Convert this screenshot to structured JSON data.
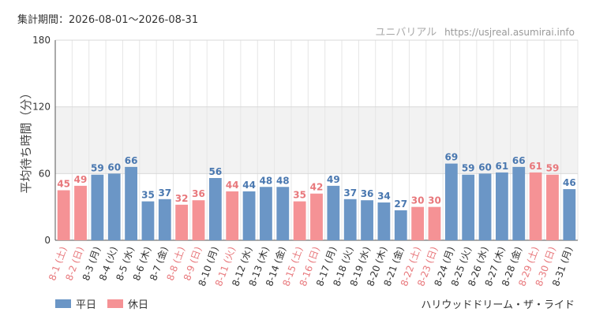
{
  "header": {
    "period": "集計期間：2026-08-01〜2026-08-31",
    "source_name": "ユニバリアル",
    "source_url": "https://usjreal.asumirai.info"
  },
  "footer": {
    "attraction": "ハリウッドドリーム・ザ・ライド"
  },
  "colors": {
    "weekday": "#6b96c6",
    "holiday": "#f59295",
    "weekday_label": "#4a78b0",
    "holiday_label": "#e8787c",
    "holiday_tick": "#e8787c",
    "band": "#f2f2f2"
  },
  "chart_data": {
    "type": "bar",
    "ylabel": "平均待ち時間（分）",
    "ylim": [
      0,
      180
    ],
    "yticks": [
      0,
      60,
      120,
      180
    ],
    "band": [
      60,
      120
    ],
    "grid": true,
    "legend_position": "bottom-left",
    "legend": [
      {
        "key": "weekday",
        "label": "平日"
      },
      {
        "key": "holiday",
        "label": "休日"
      }
    ],
    "categories": [
      "8-1 (土)",
      "8-2 (日)",
      "8-3 (月)",
      "8-4 (火)",
      "8-5 (水)",
      "8-6 (木)",
      "8-7 (金)",
      "8-8 (土)",
      "8-9 (日)",
      "8-10 (月)",
      "8-11 (火)",
      "8-12 (水)",
      "8-13 (木)",
      "8-14 (金)",
      "8-15 (土)",
      "8-16 (日)",
      "8-17 (月)",
      "8-18 (火)",
      "8-19 (水)",
      "8-20 (木)",
      "8-21 (金)",
      "8-22 (土)",
      "8-23 (日)",
      "8-24 (月)",
      "8-25 (火)",
      "8-26 (水)",
      "8-27 (木)",
      "8-28 (金)",
      "8-29 (土)",
      "8-30 (日)",
      "8-31 (月)"
    ],
    "values": [
      45,
      49,
      59,
      60,
      66,
      35,
      37,
      32,
      36,
      56,
      44,
      44,
      48,
      48,
      35,
      42,
      49,
      37,
      36,
      34,
      27,
      30,
      30,
      69,
      59,
      60,
      61,
      66,
      61,
      59,
      46
    ],
    "day_type": [
      "holiday",
      "holiday",
      "weekday",
      "weekday",
      "weekday",
      "weekday",
      "weekday",
      "holiday",
      "holiday",
      "weekday",
      "holiday",
      "weekday",
      "weekday",
      "weekday",
      "holiday",
      "holiday",
      "weekday",
      "weekday",
      "weekday",
      "weekday",
      "weekday",
      "holiday",
      "holiday",
      "weekday",
      "weekday",
      "weekday",
      "weekday",
      "weekday",
      "holiday",
      "holiday",
      "weekday"
    ]
  }
}
